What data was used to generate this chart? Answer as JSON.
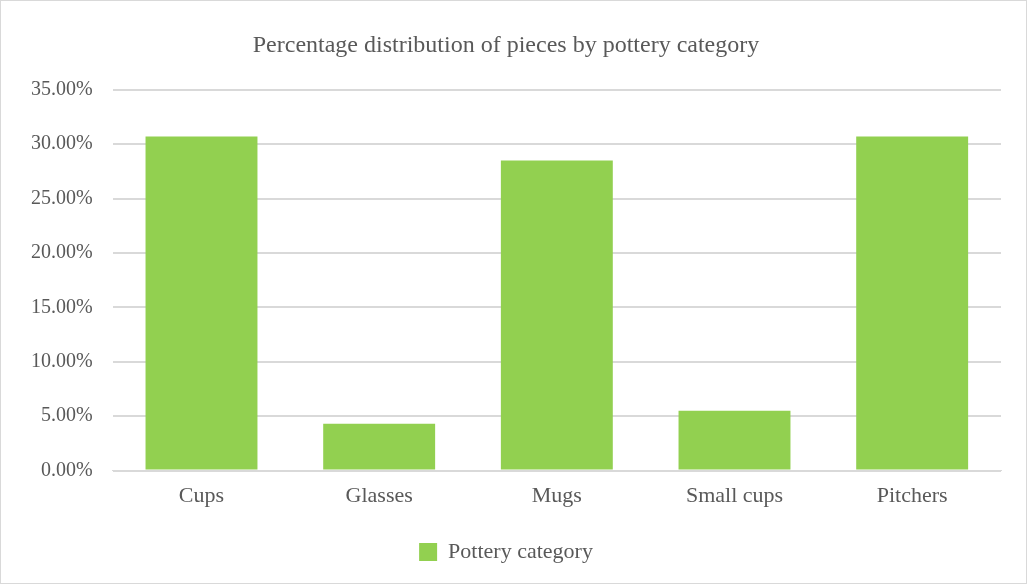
{
  "chart_data": {
    "type": "bar",
    "title": "Percentage distribution of pieces by pottery category",
    "categories": [
      "Cups",
      "Glasses",
      "Mugs",
      "Small cups",
      "Pitchers"
    ],
    "series": [
      {
        "name": "Pottery category",
        "color": "#92d050",
        "values": [
          30.7,
          4.3,
          28.5,
          5.5,
          30.7
        ]
      }
    ],
    "ylim": [
      0,
      35
    ],
    "yticks": [
      {
        "value": 0,
        "label": "0.00%"
      },
      {
        "value": 5,
        "label": "5.00%"
      },
      {
        "value": 10,
        "label": "10.00%"
      },
      {
        "value": 15,
        "label": "15.00%"
      },
      {
        "value": 20,
        "label": "20.00%"
      },
      {
        "value": 25,
        "label": "25.00%"
      },
      {
        "value": 30,
        "label": "30.00%"
      },
      {
        "value": 35,
        "label": "35.00%"
      }
    ],
    "grid": "y",
    "legend": "bottom"
  }
}
